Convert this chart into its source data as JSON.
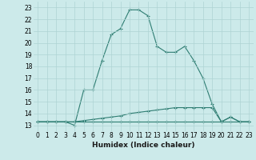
{
  "xlabel": "Humidex (Indice chaleur)",
  "x_values": [
    0,
    1,
    2,
    3,
    4,
    5,
    6,
    7,
    8,
    9,
    10,
    11,
    12,
    13,
    14,
    15,
    16,
    17,
    18,
    19,
    20,
    21,
    22,
    23
  ],
  "line1_y": [
    13.3,
    13.3,
    13.3,
    13.3,
    13.0,
    16.0,
    16.0,
    18.5,
    20.7,
    21.2,
    22.8,
    22.8,
    22.3,
    19.7,
    19.2,
    19.2,
    19.7,
    18.5,
    17.0,
    14.8,
    13.3,
    13.7,
    13.3,
    13.3
  ],
  "line2_y": [
    13.3,
    13.3,
    13.3,
    13.3,
    13.3,
    13.4,
    13.5,
    13.6,
    13.7,
    13.8,
    14.0,
    14.1,
    14.2,
    14.3,
    14.4,
    14.5,
    14.5,
    14.5,
    14.5,
    14.5,
    13.3,
    13.7,
    13.3,
    13.3
  ],
  "line3_y": [
    13.3,
    13.3,
    13.3,
    13.3,
    13.3,
    13.3,
    13.3,
    13.3,
    13.3,
    13.3,
    13.3,
    13.3,
    13.3,
    13.3,
    13.3,
    13.3,
    13.3,
    13.3,
    13.3,
    13.3,
    13.3,
    13.3,
    13.3,
    13.3
  ],
  "line_color": "#2e7d72",
  "bg_color": "#cceaea",
  "grid_color": "#afd4d4",
  "xlim": [
    -0.5,
    23.5
  ],
  "ylim": [
    12.5,
    23.5
  ],
  "yticks": [
    13,
    14,
    15,
    16,
    17,
    18,
    19,
    20,
    21,
    22,
    23
  ],
  "xticks": [
    0,
    1,
    2,
    3,
    4,
    5,
    6,
    7,
    8,
    9,
    10,
    11,
    12,
    13,
    14,
    15,
    16,
    17,
    18,
    19,
    20,
    21,
    22,
    23
  ],
  "marker": "+",
  "markersize": 3,
  "linewidth": 0.8,
  "xlabel_fontsize": 6.5,
  "tick_fontsize": 5.5
}
